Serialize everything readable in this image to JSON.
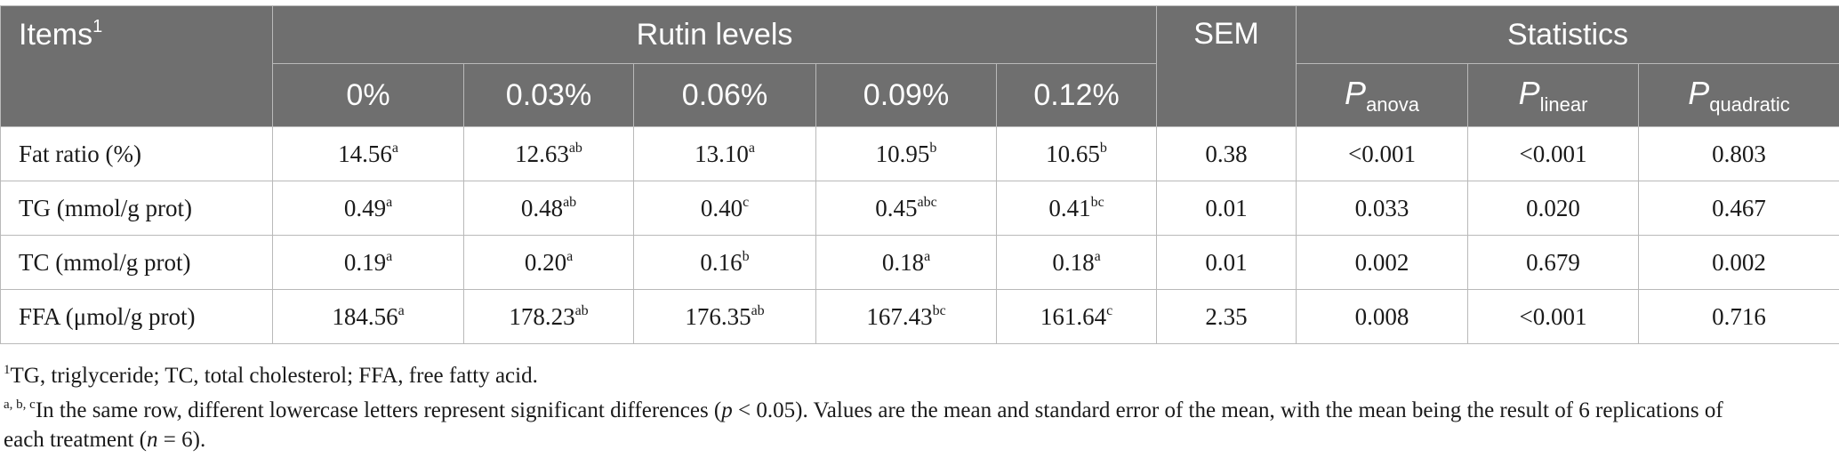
{
  "header": {
    "items_label": "Items",
    "items_sup": "1",
    "rutin_label": "Rutin levels",
    "sem_label": "SEM",
    "statistics_label": "Statistics",
    "levels": [
      "0%",
      "0.03%",
      "0.06%",
      "0.09%",
      "0.12%"
    ],
    "p_symbol": "P",
    "p_subs": [
      "anova",
      "linear",
      "quadratic"
    ]
  },
  "rows": [
    {
      "label": "Fat ratio (%)",
      "values": [
        {
          "v": "14.56",
          "sup": "a"
        },
        {
          "v": "12.63",
          "sup": "ab"
        },
        {
          "v": "13.10",
          "sup": "a"
        },
        {
          "v": "10.95",
          "sup": "b"
        },
        {
          "v": "10.65",
          "sup": "b"
        }
      ],
      "sem": "0.38",
      "stats": [
        "<0.001",
        "<0.001",
        "0.803"
      ]
    },
    {
      "label": "TG (mmol/g prot)",
      "values": [
        {
          "v": "0.49",
          "sup": "a"
        },
        {
          "v": "0.48",
          "sup": "ab"
        },
        {
          "v": "0.40",
          "sup": "c"
        },
        {
          "v": "0.45",
          "sup": "abc"
        },
        {
          "v": "0.41",
          "sup": "bc"
        }
      ],
      "sem": "0.01",
      "stats": [
        "0.033",
        "0.020",
        "0.467"
      ]
    },
    {
      "label": "TC (mmol/g prot)",
      "values": [
        {
          "v": "0.19",
          "sup": "a"
        },
        {
          "v": "0.20",
          "sup": "a"
        },
        {
          "v": "0.16",
          "sup": "b"
        },
        {
          "v": "0.18",
          "sup": "a"
        },
        {
          "v": "0.18",
          "sup": "a"
        }
      ],
      "sem": "0.01",
      "stats": [
        "0.002",
        "0.679",
        "0.002"
      ]
    },
    {
      "label": "FFA (μmol/g prot)",
      "values": [
        {
          "v": "184.56",
          "sup": "a"
        },
        {
          "v": "178.23",
          "sup": "ab"
        },
        {
          "v": "176.35",
          "sup": "ab"
        },
        {
          "v": "167.43",
          "sup": "bc"
        },
        {
          "v": "161.64",
          "sup": "c"
        }
      ],
      "sem": "2.35",
      "stats": [
        "0.008",
        "<0.001",
        "0.716"
      ]
    }
  ],
  "footnotes": {
    "note1_sup": "1",
    "note1_text": "TG, triglyceride; TC, total cholesterol; FFA, free fatty acid.",
    "note2_sup": "a, b, c",
    "note2_text_a": "In the same row, different lowercase letters represent significant differences (",
    "note2_p": "p",
    "note2_text_b": " < 0.05). Values are the mean and standard error of the mean, with the mean being the result of 6 replications of",
    "note2_text_c": "each treatment (",
    "note2_n": "n",
    "note2_text_d": " = 6)."
  }
}
